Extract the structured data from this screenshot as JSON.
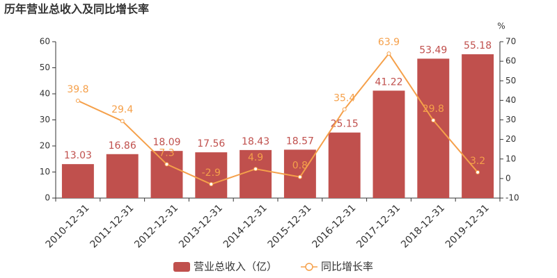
{
  "chart_data": {
    "type": "bar",
    "title": "历年营业总收入及同比增长率",
    "categories": [
      "2010-12-31",
      "2011-12-31",
      "2012-12-31",
      "2013-12-31",
      "2014-12-31",
      "2015-12-31",
      "2016-12-31",
      "2017-12-31",
      "2018-12-31",
      "2019-12-31"
    ],
    "series": [
      {
        "name": "营业总收入（亿）",
        "type": "bar",
        "color": "#c0504d",
        "values": [
          13.03,
          16.86,
          18.09,
          17.56,
          18.43,
          18.57,
          25.15,
          41.22,
          53.49,
          55.18
        ]
      },
      {
        "name": "同比增长率",
        "type": "line",
        "axis": "y2",
        "color": "#f5a04a",
        "values": [
          39.8,
          29.4,
          7.3,
          -2.9,
          4.9,
          0.8,
          35.4,
          63.9,
          29.8,
          3.2
        ]
      }
    ],
    "ylim": [
      0,
      60
    ],
    "yticks": [
      0,
      10,
      20,
      30,
      40,
      50,
      60
    ],
    "y2lim": [
      -10,
      70
    ],
    "y2ticks": [
      -10,
      0,
      10,
      20,
      30,
      40,
      50,
      60,
      70
    ],
    "y2label": "%"
  }
}
